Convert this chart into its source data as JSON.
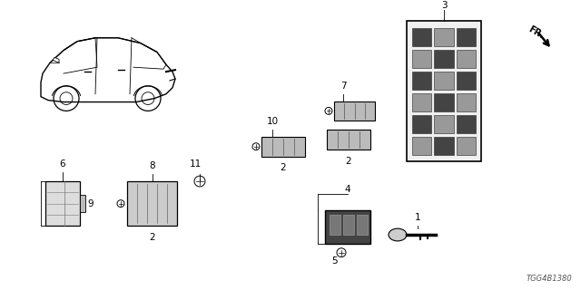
{
  "bg_color": "#ffffff",
  "line_color": "#000000",
  "gray_dark": "#555555",
  "gray_mid": "#888888",
  "gray_light": "#cccccc",
  "diagram_code": "TGG4B1380",
  "figsize": [
    6.4,
    3.2
  ],
  "dpi": 100,
  "fr_text": "FR.",
  "label_fontsize": 7.5,
  "small_fontsize": 6
}
